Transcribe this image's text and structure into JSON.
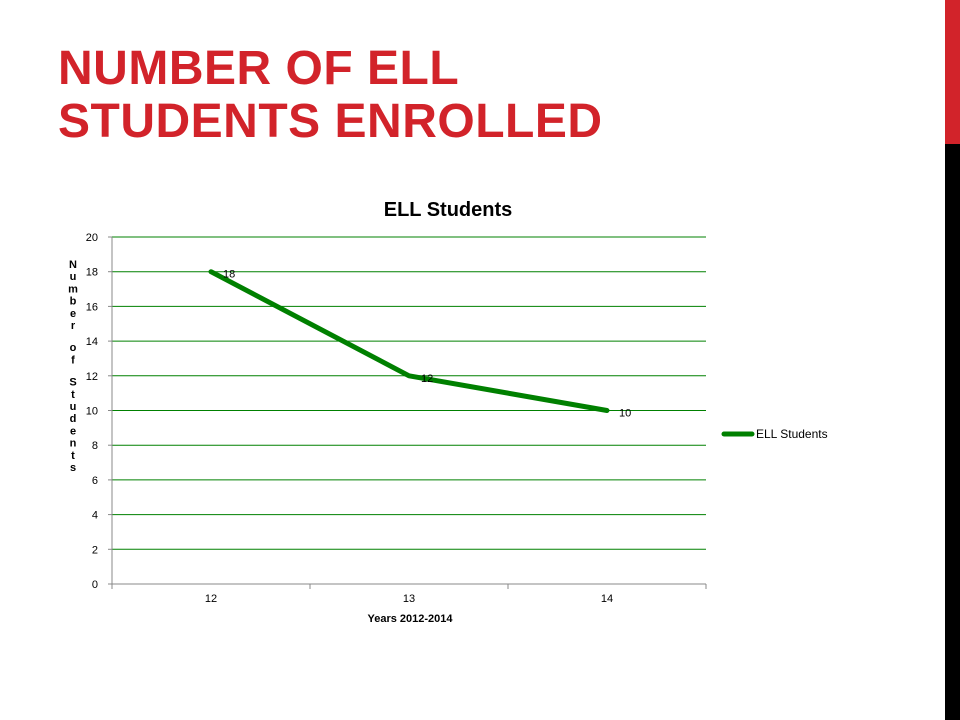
{
  "slide": {
    "title_line1": "NUMBER OF ELL",
    "title_line2": "STUDENTS ENROLLED",
    "accent_color": "#d2232a",
    "sidebar_colors": [
      "#d2232a",
      "#000000"
    ]
  },
  "chart_data": {
    "type": "line",
    "title": "ELL Students",
    "xlabel": "Years 2012-2014",
    "ylabel": "Number of Students",
    "categories": [
      "12",
      "13",
      "14"
    ],
    "series": [
      {
        "name": "ELL Students",
        "values": [
          18,
          12,
          10
        ],
        "color": "#008000"
      }
    ],
    "data_labels": [
      "18",
      "12",
      "10"
    ],
    "ylim": [
      0,
      20
    ],
    "yticks": [
      0,
      2,
      4,
      6,
      8,
      10,
      12,
      14,
      16,
      18,
      20
    ],
    "grid": true,
    "grid_color": "#008000",
    "legend": "right"
  }
}
